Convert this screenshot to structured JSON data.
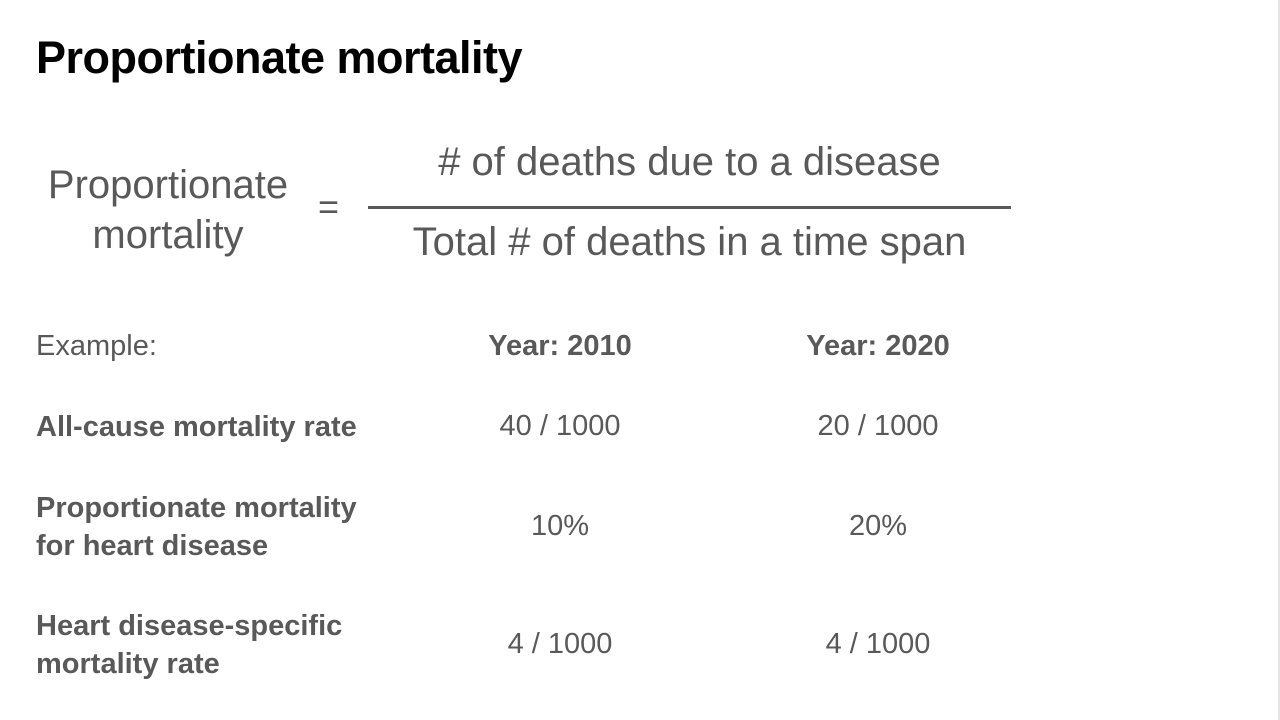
{
  "title": "Proportionate mortality",
  "formula": {
    "lhs_line1": "Proportionate",
    "lhs_line2": "mortality",
    "equals": "=",
    "numerator": "# of deaths due to a disease",
    "denominator": "Total # of deaths in a time span"
  },
  "table": {
    "label": "Example:",
    "columns": [
      "Year: 2010",
      "Year: 2020"
    ],
    "rows": [
      {
        "label_line1": "All-cause mortality rate",
        "label_line2": "",
        "values": [
          "40 / 1000",
          "20 / 1000"
        ]
      },
      {
        "label_line1": "Proportionate mortality",
        "label_line2": "for heart disease",
        "values": [
          "10%",
          "20%"
        ]
      },
      {
        "label_line1": "Heart disease-specific",
        "label_line2": "mortality rate",
        "values": [
          "4 / 1000",
          "4 / 1000"
        ]
      }
    ]
  }
}
